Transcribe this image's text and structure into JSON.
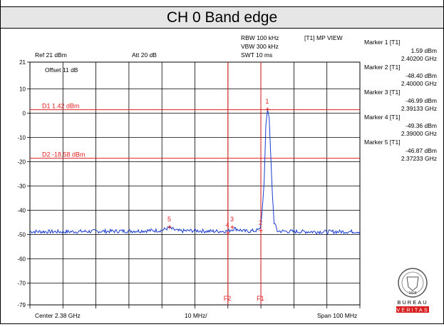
{
  "title": "CH 0 Band edge",
  "header": {
    "rbw": "RBW 100 kHz",
    "vbw": "VBW 300 kHz",
    "swt": "SWT 10 ms",
    "view": "[T1] MP VIEW",
    "ref": "Ref 21 dBm",
    "att": "Att  20 dB",
    "offset": "Offset 11 dB"
  },
  "markers": [
    {
      "label": "Marker 1 [T1]",
      "value": "1.59 dBm",
      "freq": "2.40200 GHz"
    },
    {
      "label": "Marker 2 [T1]",
      "value": "-48.40 dBm",
      "freq": "2.40000 GHz"
    },
    {
      "label": "Marker 3 [T1]",
      "value": "-46.99 dBm",
      "freq": "2.39133 GHz"
    },
    {
      "label": "Marker 4 [T1]",
      "value": "-49.36 dBm",
      "freq": "2.39000 GHz"
    },
    {
      "label": "Marker 5 [T1]",
      "value": "-46.87 dBm",
      "freq": "2.37233 GHz"
    }
  ],
  "footer": {
    "center": "Center 2.38 GHz",
    "div": "10 MHz/",
    "span": "Span 100 MHz"
  },
  "logo": {
    "text": "BUREAU VERITAS",
    "year": "1828"
  },
  "colors": {
    "trace": "#1a3ccf",
    "limit": "#e32020",
    "grid": "#000000",
    "title_bg": "#e6e6e6"
  },
  "chart_data": {
    "type": "line",
    "title": "CH 0 Band edge",
    "xlabel": "",
    "ylabel": "",
    "x_unit": "GHz",
    "y_unit": "dBm",
    "xlim": [
      2.33,
      2.43
    ],
    "ylim": [
      -79,
      21
    ],
    "yticks": [
      21,
      10,
      0,
      -10,
      -20,
      -30,
      -40,
      -50,
      -60,
      -70,
      -79
    ],
    "grid": true,
    "series": [
      {
        "x": [
          2.33,
          2.34,
          2.35,
          2.36,
          2.37,
          2.372,
          2.375,
          2.38,
          2.385,
          2.39,
          2.392,
          2.395,
          2.398,
          2.3995,
          2.4,
          2.4005,
          2.401,
          2.4015,
          2.402,
          2.4025,
          2.403,
          2.4035,
          2.404,
          2.405,
          2.41,
          2.42,
          2.43
        ],
        "y": [
          -48.8,
          -48.9,
          -48.7,
          -48.6,
          -48.3,
          -47.3,
          -48.6,
          -48.4,
          -48.7,
          -48.6,
          -47.5,
          -48.7,
          -48.5,
          -48.1,
          -46.0,
          -38.0,
          -28.0,
          -5.0,
          1.6,
          -2.0,
          -18.0,
          -34.0,
          -45.0,
          -48.6,
          -48.8,
          -48.9,
          -48.8
        ]
      }
    ],
    "reference_lines": [
      {
        "type": "horizontal",
        "label": "D1 1.42 dBm",
        "y": 1.42
      },
      {
        "type": "horizontal",
        "label": "D2 -18.58 dBm",
        "y": -18.58
      },
      {
        "type": "vertical",
        "label": "F2",
        "x": 2.39
      },
      {
        "type": "vertical",
        "label": "F1",
        "x": 2.4
      }
    ],
    "markers": [
      {
        "label": "1",
        "x": 2.402,
        "y": 1.59
      },
      {
        "label": "2",
        "x": 2.4,
        "y": -48.4
      },
      {
        "label": "3",
        "x": 2.39133,
        "y": -46.99
      },
      {
        "label": "4",
        "x": 2.39,
        "y": -49.36
      },
      {
        "label": "5",
        "x": 2.37233,
        "y": -46.87
      }
    ]
  }
}
